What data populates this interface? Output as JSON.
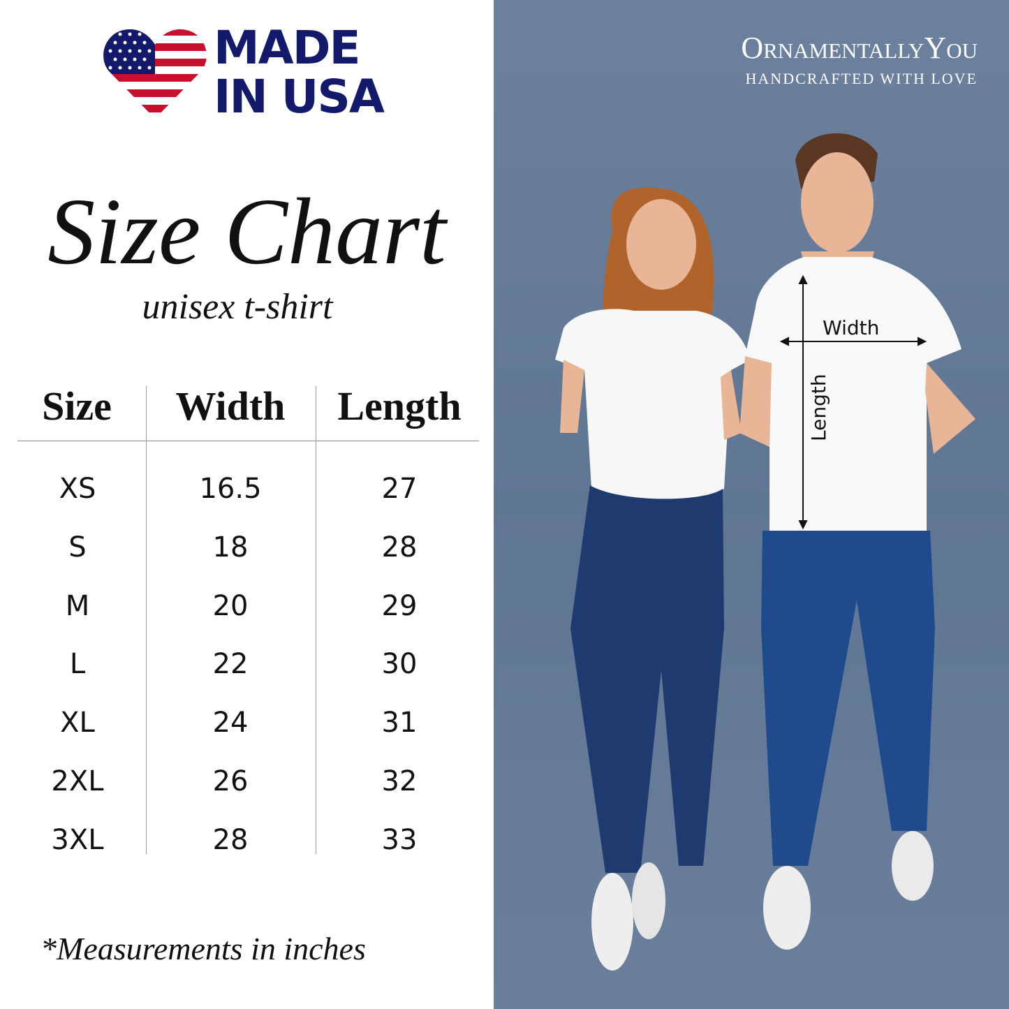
{
  "badge": {
    "line1": "MADE",
    "line2": "IN USA",
    "flag_colors": {
      "blue": "#131a6b",
      "red": "#c8102e"
    }
  },
  "title": "Size Chart",
  "subtitle": "unisex t-shirt",
  "table": {
    "headers": [
      "Size",
      "Width",
      "Length"
    ],
    "rows": [
      [
        "XS",
        "16.5",
        "27"
      ],
      [
        "S",
        "18",
        "28"
      ],
      [
        "M",
        "20",
        "29"
      ],
      [
        "L",
        "22",
        "30"
      ],
      [
        "XL",
        "24",
        "31"
      ],
      [
        "2XL",
        "26",
        "32"
      ],
      [
        "3XL",
        "28",
        "33"
      ]
    ]
  },
  "footnote": "*Measurements in inches",
  "brand": {
    "name": "OrnamentallyYou",
    "tagline": "HANDCRAFTED WITH LOVE"
  },
  "photo": {
    "width_label": "Width",
    "length_label": "Length",
    "background": "#637a97"
  }
}
